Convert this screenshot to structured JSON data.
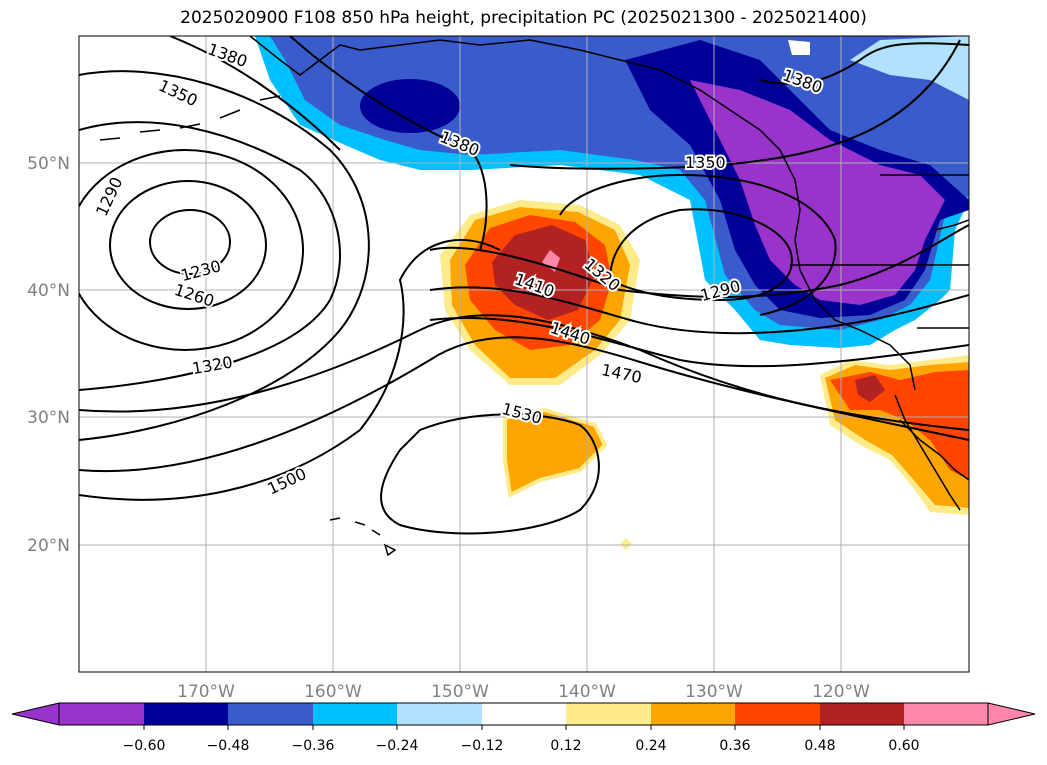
{
  "title": "2025020900 F108 850 hPa height, precipitation PC (2025021300 - 2025021400)",
  "lat_labels": [
    "50°N",
    "40°N",
    "30°N",
    "20°N"
  ],
  "lon_labels": [
    "170°W",
    "160°W",
    "150°W",
    "140°W",
    "130°W",
    "120°W"
  ],
  "contour_labels": [
    "1380",
    "1350",
    "1290",
    "1230",
    "1260",
    "1320",
    "1500",
    "1380",
    "1410",
    "1440",
    "1470",
    "1530",
    "1320",
    "1290",
    "1350",
    "1380"
  ],
  "colorbar": {
    "ticks": [
      "−0.60",
      "−0.48",
      "−0.36",
      "−0.24",
      "−0.12",
      "0.12",
      "0.24",
      "0.36",
      "0.48",
      "0.60"
    ],
    "colors": [
      "#9933cc",
      "#000099",
      "#3a5bcc",
      "#00bfff",
      "#b0e2ff",
      "#ffffff",
      "#ffeb8a",
      "#ffa500",
      "#ff4500",
      "#b22222",
      "#ff88aa"
    ]
  },
  "colors": {
    "grid": "#b0b0b0",
    "contour": "#000000",
    "tick_label": "#808080"
  }
}
